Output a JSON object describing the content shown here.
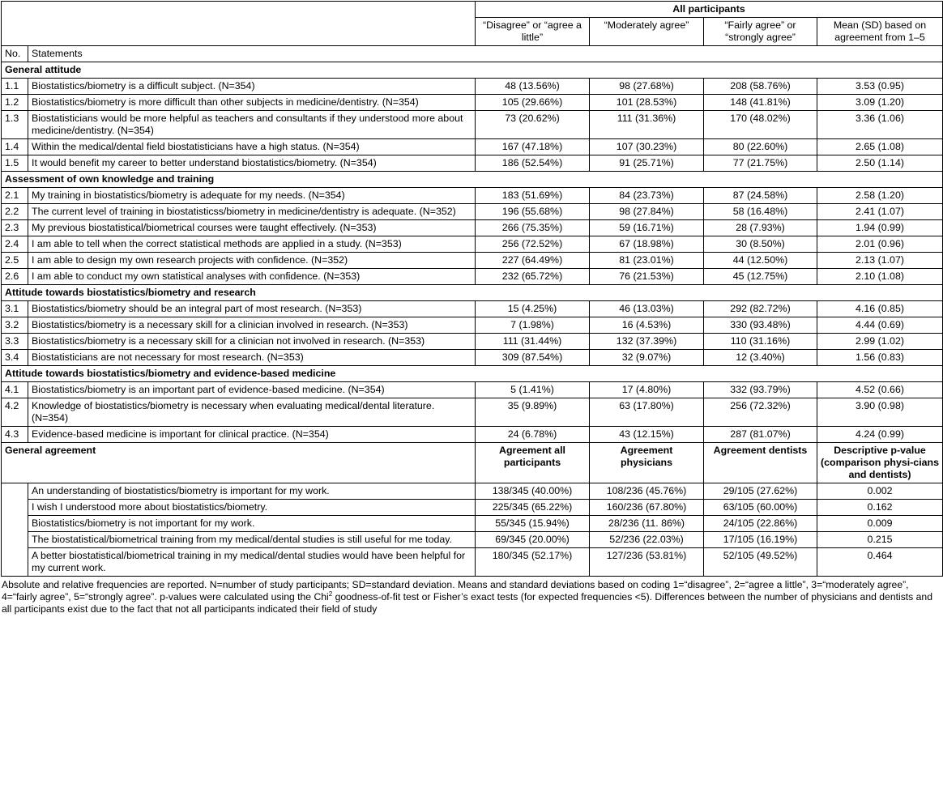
{
  "header": {
    "group_label": "All participants",
    "columns": [
      "“Disagree” or “agree a little”",
      "“Moderately agree”",
      "“Fairly agree” or “strongly agree”",
      "Mean (SD) based on agreement from 1–5"
    ],
    "no_label": "No.",
    "statements_label": "Statements"
  },
  "sections": [
    {
      "title": "General attitude",
      "rows": [
        {
          "no": "1.1",
          "statement": "Biostatistics/biometry is a difficult subject. (N=354)",
          "values": [
            "48 (13.56%)",
            "98 (27.68%)",
            "208 (58.76%)",
            "3.53 (0.95)"
          ]
        },
        {
          "no": "1.2",
          "statement": "Biostatistics/biometry is more difficult than other subjects in medicine/dentistry. (N=354)",
          "values": [
            "105 (29.66%)",
            "101 (28.53%)",
            "148 (41.81%)",
            "3.09 (1.20)"
          ]
        },
        {
          "no": "1.3",
          "statement": "Biostatisticians would be more helpful as teachers and consultants if they understood more about medicine/dentistry. (N=354)",
          "values": [
            "73 (20.62%)",
            "111 (31.36%)",
            "170 (48.02%)",
            "3.36 (1.06)"
          ]
        },
        {
          "no": "1.4",
          "statement": "Within the medical/dental field biostatisticians have a high status. (N=354)",
          "values": [
            "167 (47.18%)",
            "107 (30.23%)",
            "80 (22.60%)",
            "2.65 (1.08)"
          ]
        },
        {
          "no": "1.5",
          "statement": "It would benefit my career to better understand biostatistics/biometry. (N=354)",
          "values": [
            "186 (52.54%)",
            "91 (25.71%)",
            "77 (21.75%)",
            "2.50 (1.14)"
          ]
        }
      ]
    },
    {
      "title": "Assessment of own knowledge and training",
      "rows": [
        {
          "no": "2.1",
          "statement": "My training in biostatistics/biometry is adequate for my needs. (N=354)",
          "values": [
            "183 (51.69%)",
            "84 (23.73%)",
            "87 (24.58%)",
            "2.58 (1.20)"
          ]
        },
        {
          "no": "2.2",
          "statement": "The current level of training in biostatisticss/biometry in medicine/dentistry is adequate. (N=352)",
          "values": [
            "196 (55.68%)",
            "98 (27.84%)",
            "58 (16.48%)",
            "2.41 (1.07)"
          ]
        },
        {
          "no": "2.3",
          "statement": "My previous biostatistical/biometrical courses were taught effectively. (N=353)",
          "values": [
            "266 (75.35%)",
            "59 (16.71%)",
            "28 (7.93%)",
            "1.94 (0.99)"
          ]
        },
        {
          "no": "2.4",
          "statement": "I am able to tell when the correct statistical methods are applied in a study. (N=353)",
          "values": [
            "256 (72.52%)",
            "67 (18.98%)",
            "30 (8.50%)",
            "2.01 (0.96)"
          ]
        },
        {
          "no": "2.5",
          "statement": "I am able to design my own research projects with confidence. (N=352)",
          "values": [
            "227 (64.49%)",
            "81 (23.01%)",
            "44 (12.50%)",
            "2.13 (1.07)"
          ]
        },
        {
          "no": "2.6",
          "statement": "I am able to conduct my own statistical analyses with confidence. (N=353)",
          "values": [
            "232 (65.72%)",
            "76 (21.53%)",
            "45 (12.75%)",
            "2.10 (1.08)"
          ]
        }
      ]
    },
    {
      "title": "Attitude towards biostatistics/biometry and research",
      "rows": [
        {
          "no": "3.1",
          "statement": "Biostatistics/biometry should be an integral part of most research. (N=353)",
          "values": [
            "15 (4.25%)",
            "46 (13.03%)",
            "292 (82.72%)",
            "4.16 (0.85)"
          ]
        },
        {
          "no": "3.2",
          "statement": "Biostatistics/biometry is a necessary skill for a clinician involved in research. (N=353)",
          "values": [
            "7 (1.98%)",
            "16 (4.53%)",
            "330 (93.48%)",
            "4.44 (0.69)"
          ]
        },
        {
          "no": "3.3",
          "statement": "Biostatistics/biometry is a necessary skill for a clinician not involved in research. (N=353)",
          "values": [
            "111 (31.44%)",
            "132 (37.39%)",
            "110 (31.16%)",
            "2.99 (1.02)"
          ]
        },
        {
          "no": "3.4",
          "statement": "Biostatisticians are not necessary for most research. (N=353)",
          "values": [
            "309 (87.54%)",
            "32 (9.07%)",
            "12 (3.40%)",
            "1.56 (0.83)"
          ]
        }
      ]
    },
    {
      "title": "Attitude towards biostatistics/biometry and evidence-based medicine",
      "rows": [
        {
          "no": "4.1",
          "statement": "Biostatistics/biometry is an important part of evidence-based medicine. (N=354)",
          "values": [
            "5 (1.41%)",
            "17 (4.80%)",
            "332 (93.79%)",
            "4.52 (0.66)"
          ]
        },
        {
          "no": "4.2",
          "statement": "Knowledge of biostatistics/biometry is necessary when evaluating medical/dental literature. (N=354)",
          "values": [
            "35 (9.89%)",
            "63 (17.80%)",
            "256 (72.32%)",
            "3.90 (0.98)"
          ]
        },
        {
          "no": "4.3",
          "statement": "Evidence-based medicine is important for clinical practice. (N=354)",
          "values": [
            "24 (6.78%)",
            "43 (12.15%)",
            "287 (81.07%)",
            "4.24 (0.99)"
          ]
        }
      ]
    }
  ],
  "general_agreement": {
    "title": "General agreement",
    "columns": [
      "Agreement all participants",
      "Agreement physicians",
      "Agreement dentists",
      "Descriptive p-value (comparison physi-cians and dentists)"
    ],
    "rows": [
      {
        "statement": "An understanding of biostatistics/biometry is important for my work.",
        "values": [
          "138/345 (40.00%)",
          "108/236 (45.76%)",
          "29/105 (27.62%)",
          "0.002"
        ]
      },
      {
        "statement": "I wish I understood more about biostatistics/biometry.",
        "values": [
          "225/345 (65.22%)",
          "160/236 (67.80%)",
          "63/105 (60.00%)",
          "0.162"
        ]
      },
      {
        "statement": "Biostatistics/biometry is not important for my work.",
        "values": [
          "55/345 (15.94%)",
          "28/236 (11. 86%)",
          "24/105 (22.86%)",
          "0.009"
        ]
      },
      {
        "statement": "The biostatistical/biometrical training from my medical/dental studies is still useful for me today.",
        "values": [
          "69/345 (20.00%)",
          "52/236 (22.03%)",
          "17/105 (16.19%)",
          "0.215"
        ]
      },
      {
        "statement": "A better biostatistical/biometrical training in my medical/dental studies would have been helpful for my current work.",
        "values": [
          "180/345 (52.17%)",
          "127/236 (53.81%)",
          "52/105 (49.52%)",
          "0.464"
        ]
      }
    ]
  },
  "footnote": {
    "before": "Absolute and relative frequencies are reported. N=number of study participants; SD=standard deviation. Means and standard deviations based on coding 1=“disagree”, 2=“agree a little”, 3=“moderately agree”, 4=“fairly agree”, 5=“strongly agree”. p-values were calculated using the Chi",
    "sup": "2",
    "after": " goodness-of-fit test or Fisher’s exact tests (for expected frequencies <5). Differences between the number of physicians and dentists and all participants exist due to the fact that not all participants indicated their field of study"
  }
}
